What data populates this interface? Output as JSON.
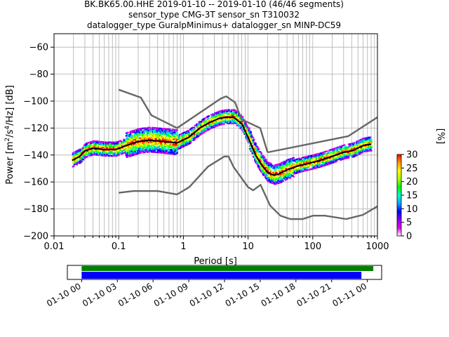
{
  "chart_data": {
    "type": "heatmap",
    "title_lines": [
      "BK.BK65.00.HHE   2019-01-10 -- 2019-01-10  (46/46 segments)",
      "sensor_type CMG-3T sensor_sn T310032",
      "datalogger_type GuralpMinimus+ datalogger_sn MINP-DC59"
    ],
    "xlabel": "Period [s]",
    "ylabel_parts": {
      "pre": "Power [m",
      "sup1": "2",
      "mid": "/s",
      "sup2": "4",
      "post": "/Hz] [dB]"
    },
    "x_scale": "log",
    "xlim": [
      0.01,
      1000
    ],
    "ylim": [
      -200,
      -50
    ],
    "x_ticks": [
      {
        "v": 0.01,
        "label": "0.01"
      },
      {
        "v": 0.1,
        "label": "0.1"
      },
      {
        "v": 1,
        "label": "1"
      },
      {
        "v": 10,
        "label": "10"
      },
      {
        "v": 100,
        "label": "100"
      },
      {
        "v": 1000,
        "label": "1000"
      }
    ],
    "y_ticks": [
      {
        "v": -60,
        "label": "−60"
      },
      {
        "v": -80,
        "label": "−80"
      },
      {
        "v": -100,
        "label": "−100"
      },
      {
        "v": -120,
        "label": "−120"
      },
      {
        "v": -140,
        "label": "−140"
      },
      {
        "v": -160,
        "label": "−160"
      },
      {
        "v": -180,
        "label": "−180"
      },
      {
        "v": -200,
        "label": "−200"
      }
    ],
    "grid": true,
    "series": [
      {
        "role": "mean",
        "color": "#000000",
        "x": [
          0.019,
          0.025,
          0.03,
          0.04,
          0.06,
          0.09,
          0.13,
          0.2,
          0.3,
          0.5,
          0.8,
          1.2,
          1.8,
          2.5,
          3.5,
          4.5,
          6,
          8,
          10,
          13,
          16,
          20,
          25,
          30,
          40,
          60,
          90,
          130,
          200,
          300,
          400,
          600,
          800
        ],
        "y": [
          -144,
          -141,
          -137,
          -135,
          -136,
          -136,
          -133,
          -130,
          -129,
          -130,
          -131,
          -127,
          -120,
          -116,
          -113,
          -112,
          -112,
          -117,
          -127,
          -140,
          -147,
          -153,
          -155,
          -154,
          -151,
          -148,
          -146,
          -144,
          -141,
          -138,
          -137,
          -133,
          -132
        ]
      },
      {
        "role": "NHNM",
        "color": "#666666",
        "x": [
          0.1,
          0.22,
          0.32,
          0.8,
          3.8,
          4.6,
          6.3,
          7.9,
          15.4,
          20
        ],
        "y": [
          -91.5,
          -97.4,
          -110.5,
          -120,
          -98,
          -96.5,
          -101,
          -113.5,
          -120,
          -138
        ]
      },
      {
        "role": "NHNM-long",
        "color": "#666666",
        "x": [
          20,
          354.8,
          1000
        ],
        "y": [
          -138,
          -126,
          -112
        ]
      },
      {
        "role": "NLNM",
        "color": "#666666",
        "x": [
          0.1,
          0.17,
          0.4,
          0.8,
          1.24,
          2.4,
          4.3,
          5,
          6,
          10,
          12,
          15.6,
          21.9,
          31.6,
          45,
          70,
          101,
          154,
          328,
          600,
          1000
        ],
        "y": [
          -168,
          -166.7,
          -166.7,
          -169.2,
          -163.7,
          -148.6,
          -141.1,
          -141.1,
          -149,
          -163.8,
          -166.2,
          -162.1,
          -177.5,
          -185,
          -187.5,
          -187.5,
          -185,
          -185,
          -187.5,
          -184.4,
          -178
        ]
      }
    ],
    "colorbar": {
      "label": "[%]",
      "range": [
        0,
        30
      ],
      "ticks": [
        0,
        5,
        10,
        15,
        20,
        25,
        30
      ],
      "colors": [
        "#ffffff",
        "#e000e0",
        "#8800ff",
        "#0000ff",
        "#00aaff",
        "#00ffcc",
        "#00ff00",
        "#aaff00",
        "#ffff00",
        "#ff9900",
        "#ff0000"
      ]
    },
    "coverage": {
      "type": "timeline",
      "ticks": [
        "01-10 00",
        "01-10 03",
        "01-10 06",
        "01-10 09",
        "01-10 12",
        "01-10 15",
        "01-10 18",
        "01-10 21",
        "01-11 00"
      ],
      "tick_hours": [
        0,
        3,
        6,
        9,
        12,
        15,
        18,
        21,
        24
      ],
      "range_hours": [
        -1.2,
        25.2
      ],
      "bars": [
        {
          "name": "data",
          "color": "#008000",
          "start_h": 0,
          "end_h": 24.5
        },
        {
          "name": "used",
          "color": "#0000ff",
          "start_h": 0,
          "end_h": 23.5
        }
      ]
    }
  }
}
